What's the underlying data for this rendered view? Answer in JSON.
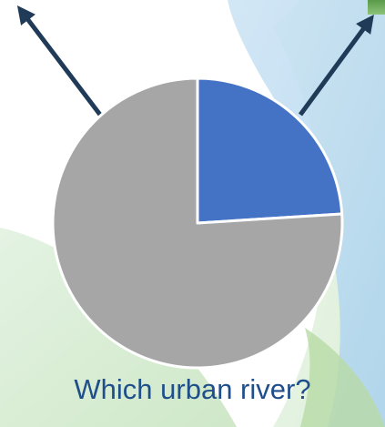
{
  "caption": "Which urban river?",
  "colors": {
    "slice_highlight": "#4472c4",
    "slice_rest": "#a6a6a6",
    "arrow": "#1f3b57",
    "caption": "#1f4f8b"
  },
  "chart_data": {
    "type": "pie",
    "categories": [
      "",
      ""
    ],
    "values": [
      24,
      76
    ],
    "colors": [
      "#4472c4",
      "#a6a6a6"
    ],
    "start_angle_deg": 0,
    "direction": "clockwise",
    "legend": "none"
  }
}
